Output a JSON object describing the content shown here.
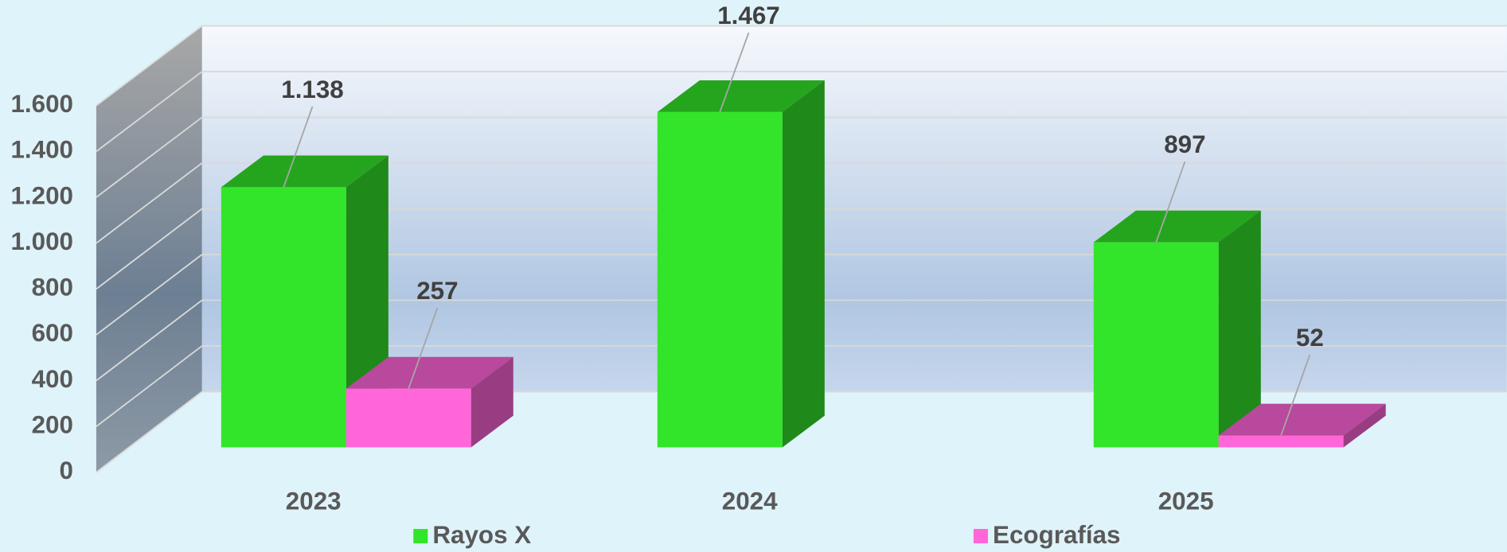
{
  "chart_data": {
    "type": "bar3d",
    "categories": [
      "2023",
      "2024",
      "2025"
    ],
    "series": [
      {
        "name": "Rayos X",
        "color": "#33e52a",
        "values": [
          1138,
          1467,
          897
        ],
        "value_labels": [
          "1.138",
          "1.467",
          "897"
        ]
      },
      {
        "name": "Ecografías",
        "color": "#ff66d9",
        "values": [
          257,
          null,
          52
        ]
      }
    ],
    "ylim": [
      0,
      1600
    ],
    "yticks": [
      0,
      200,
      400,
      600,
      800,
      {
        "value": 1000,
        "label": "1.000"
      },
      {
        "value": 1200,
        "label": "1.200"
      },
      {
        "value": 1400,
        "label": "1.400"
      },
      {
        "value": 1600,
        "label": "1.600"
      }
    ],
    "grid": true,
    "legend": "bottom"
  }
}
